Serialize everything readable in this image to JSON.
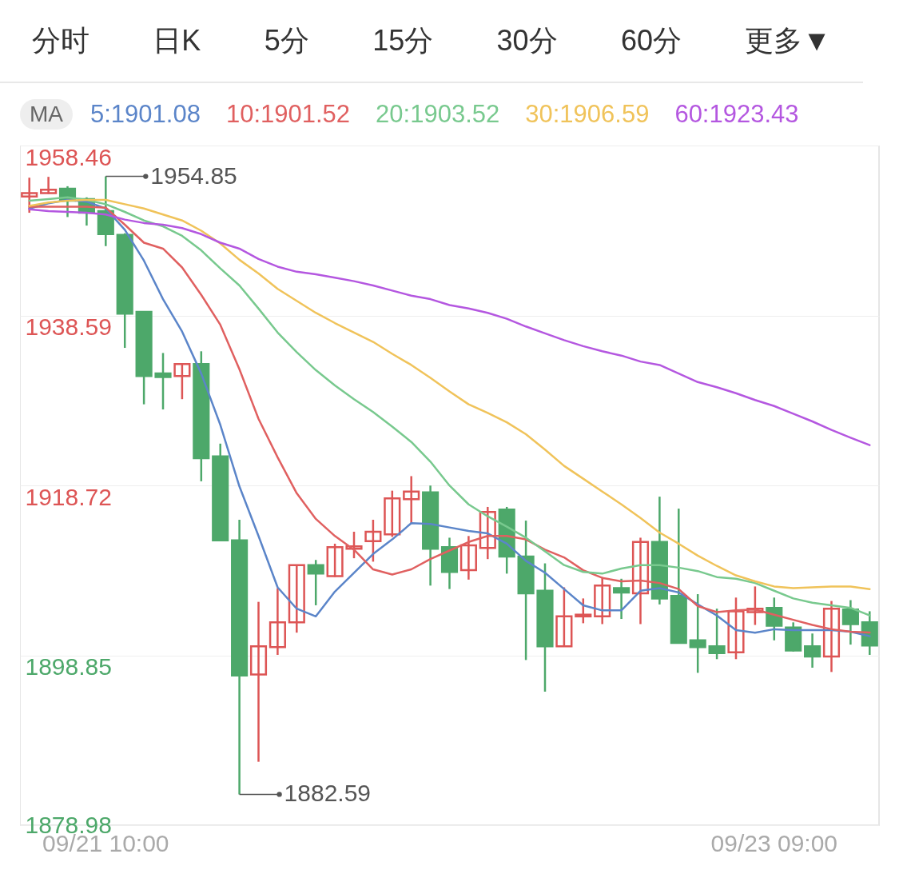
{
  "chart_data": {
    "type": "candlestick",
    "categories": [
      null,
      null,
      null,
      null,
      "09/21 10:00",
      null,
      null,
      null,
      null,
      null,
      null,
      null,
      null,
      null,
      null,
      null,
      null,
      null,
      null,
      null,
      null,
      null,
      null,
      null,
      null,
      null,
      null,
      null,
      null,
      null,
      null,
      null,
      null,
      null,
      null,
      null,
      null,
      null,
      null,
      "09/23 09:00",
      null,
      null,
      null,
      null,
      null
    ],
    "ohlc": [
      [
        1952.5,
        1954.7,
        1950.6,
        1952.9
      ],
      [
        1952.9,
        1954.8,
        1952.8,
        1953.3
      ],
      [
        1953.4,
        1953.7,
        1950.1,
        1952.0
      ],
      [
        1952.2,
        1952.4,
        1949.1,
        1950.6
      ],
      [
        1950.8,
        1954.85,
        1946.7,
        1948.1
      ],
      [
        1948.0,
        1948.2,
        1934.8,
        1938.8
      ],
      [
        1939.0,
        1939.0,
        1928.2,
        1931.5
      ],
      [
        1931.8,
        1934.2,
        1927.6,
        1931.4
      ],
      [
        1931.5,
        1932.9,
        1928.8,
        1932.9
      ],
      [
        1932.9,
        1934.4,
        1919.2,
        1921.9
      ],
      [
        1922.1,
        1923.6,
        1912.2,
        1912.3
      ],
      [
        1912.3,
        1914.7,
        1882.59,
        1896.5
      ],
      [
        1896.6,
        1905.1,
        1886.4,
        1899.9
      ],
      [
        1899.8,
        1906.7,
        1898.9,
        1902.7
      ],
      [
        1902.7,
        1909.4,
        1901.5,
        1909.4
      ],
      [
        1909.4,
        1910.0,
        1904.7,
        1908.4
      ],
      [
        1908.1,
        1911.9,
        1908.0,
        1911.5
      ],
      [
        1911.3,
        1913.3,
        1910.2,
        1911.6
      ],
      [
        1912.2,
        1914.7,
        1909.8,
        1913.3
      ],
      [
        1913.0,
        1918.1,
        1912.7,
        1917.2
      ],
      [
        1917.1,
        1919.8,
        1914.2,
        1918.0
      ],
      [
        1917.9,
        1918.7,
        1907.0,
        1911.3
      ],
      [
        1911.5,
        1912.6,
        1906.6,
        1908.6
      ],
      [
        1908.8,
        1912.8,
        1907.7,
        1911.7
      ],
      [
        1911.4,
        1916.2,
        1910.1,
        1915.6
      ],
      [
        1915.9,
        1916.2,
        1908.4,
        1910.4
      ],
      [
        1910.4,
        1914.6,
        1898.3,
        1906.1
      ],
      [
        1906.4,
        1909.6,
        1894.6,
        1899.9
      ],
      [
        1899.9,
        1906.8,
        1899.9,
        1903.4
      ],
      [
        1903.4,
        1905.5,
        1902.6,
        1903.6
      ],
      [
        1903.4,
        1908.0,
        1902.5,
        1907.0
      ],
      [
        1906.7,
        1907.8,
        1903.1,
        1906.2
      ],
      [
        1906.1,
        1912.6,
        1902.5,
        1912.1
      ],
      [
        1912.1,
        1917.4,
        1904.8,
        1905.5
      ],
      [
        1905.8,
        1916.0,
        1900.3,
        1900.3
      ],
      [
        1900.6,
        1906.0,
        1896.8,
        1899.8
      ],
      [
        1899.9,
        1904.3,
        1898.4,
        1899.1
      ],
      [
        1899.2,
        1905.6,
        1898.4,
        1904.0
      ],
      [
        1903.9,
        1906.9,
        1902.4,
        1904.3
      ],
      [
        1904.4,
        1905.6,
        1900.6,
        1902.3
      ],
      [
        1902.1,
        1902.7,
        1899.3,
        1899.4
      ],
      [
        1899.9,
        1901.4,
        1897.4,
        1898.7
      ],
      [
        1898.7,
        1905.2,
        1896.9,
        1904.3
      ],
      [
        1904.2,
        1905.3,
        1900.1,
        1902.5
      ],
      [
        1902.7,
        1904.0,
        1898.9,
        1900.0
      ]
    ],
    "colors": [
      "#dd5555",
      "#dd5555",
      "#4da86a",
      "#4da86a",
      "#4da86a",
      "#4da86a",
      "#4da86a",
      "#4da86a",
      "#dd5555",
      "#4da86a",
      "#4da86a",
      "#4da86a",
      "#dd5555",
      "#dd5555",
      "#dd5555",
      "#4da86a",
      "#dd5555",
      "#dd5555",
      "#dd5555",
      "#dd5555",
      "#dd5555",
      "#4da86a",
      "#4da86a",
      "#dd5555",
      "#dd5555",
      "#4da86a",
      "#4da86a",
      "#4da86a",
      "#dd5555",
      "#dd5555",
      "#dd5555",
      "#4da86a",
      "#dd5555",
      "#4da86a",
      "#4da86a",
      "#4da86a",
      "#4da86a",
      "#dd5555",
      "#dd5555",
      "#4da86a",
      "#4da86a",
      "#4da86a",
      "#dd5555",
      "#4da86a",
      "#4da86a"
    ],
    "series": [
      {
        "name": "5:1901.08",
        "type": "line",
        "color": "#5b85c9",
        "values": [
          1951.1,
          1951.7,
          1952.1,
          1951.9,
          1951.1,
          1948.6,
          1945.0,
          1940.5,
          1936.7,
          1931.8,
          1925.8,
          1918.6,
          1912.8,
          1906.8,
          1904.3,
          1903.4,
          1906.3,
          1908.5,
          1910.7,
          1912.4,
          1914.3,
          1914.2,
          1913.8,
          1913.4,
          1913.1,
          1911.9,
          1909.9,
          1908.5,
          1906.6,
          1904.7,
          1904.1,
          1904.1,
          1906.4,
          1906.7,
          1906.2,
          1904.8,
          1903.5,
          1901.8,
          1901.5,
          1901.9,
          1901.8,
          1901.8,
          1901.8,
          1901.6,
          1901.08
        ]
      },
      {
        "name": "10:1901.52",
        "type": "line",
        "color": "#e06060",
        "values": [
          1951.3,
          1951.3,
          1951.3,
          1951.3,
          1951.2,
          1949.2,
          1947.1,
          1946.4,
          1944.2,
          1941.0,
          1937.5,
          1932.3,
          1926.5,
          1922.0,
          1917.8,
          1914.8,
          1912.8,
          1911.2,
          1908.9,
          1908.3,
          1908.9,
          1910.1,
          1911.1,
          1912.1,
          1912.8,
          1912.8,
          1912.4,
          1911.2,
          1910.3,
          1908.8,
          1907.9,
          1907.5,
          1907.6,
          1907.3,
          1906.6,
          1904.6,
          1903.9,
          1904.1,
          1904.2,
          1903.6,
          1903.0,
          1902.4,
          1901.9,
          1901.6,
          1901.52
        ]
      },
      {
        "name": "20:1903.52",
        "type": "line",
        "color": "#78c98e",
        "values": [
          1952.0,
          1952.2,
          1952.4,
          1952.1,
          1951.6,
          1950.7,
          1949.7,
          1949.0,
          1947.9,
          1946.2,
          1944.1,
          1942.1,
          1939.4,
          1936.6,
          1934.3,
          1932.2,
          1930.4,
          1928.8,
          1927.3,
          1925.6,
          1923.8,
          1921.5,
          1918.7,
          1916.5,
          1915.1,
          1913.9,
          1912.6,
          1911.0,
          1909.4,
          1908.6,
          1908.4,
          1909.0,
          1909.4,
          1909.4,
          1909.1,
          1908.7,
          1908.0,
          1907.8,
          1907.3,
          1906.4,
          1905.5,
          1905.0,
          1904.7,
          1904.4,
          1903.52
        ]
      },
      {
        "name": "30:1906.59",
        "type": "line",
        "color": "#f0c35a",
        "values": [
          1951.4,
          1951.8,
          1952.0,
          1952.1,
          1952.1,
          1951.6,
          1951.1,
          1950.4,
          1949.7,
          1948.5,
          1947.0,
          1945.1,
          1943.5,
          1941.7,
          1940.3,
          1938.9,
          1937.7,
          1936.6,
          1935.5,
          1934.1,
          1932.8,
          1931.3,
          1929.7,
          1928.2,
          1927.2,
          1926.1,
          1924.7,
          1922.9,
          1921.0,
          1919.5,
          1918.0,
          1916.5,
          1914.9,
          1913.2,
          1911.9,
          1910.5,
          1909.3,
          1908.2,
          1907.5,
          1906.9,
          1906.7,
          1906.8,
          1906.9,
          1906.9,
          1906.59
        ]
      },
      {
        "name": "60:1923.43",
        "type": "line",
        "color": "#b457e0",
        "values": [
          1951.0,
          1950.8,
          1950.7,
          1950.6,
          1950.4,
          1949.8,
          1949.4,
          1949.2,
          1948.8,
          1948.1,
          1947.1,
          1946.4,
          1945.2,
          1944.3,
          1943.7,
          1943.4,
          1943.0,
          1942.6,
          1942.1,
          1941.5,
          1940.9,
          1940.5,
          1939.8,
          1939.4,
          1938.9,
          1938.2,
          1937.3,
          1936.5,
          1935.7,
          1935.0,
          1934.4,
          1933.9,
          1933.2,
          1932.8,
          1931.8,
          1930.8,
          1930.2,
          1929.5,
          1928.7,
          1928.0,
          1927.1,
          1926.2,
          1925.2,
          1924.3,
          1923.43
        ]
      }
    ],
    "legend_title": "MA",
    "legend": "top",
    "annotations": [
      "1954.85",
      "1882.59",
      "分时",
      "日K",
      "5分",
      "15分",
      "30分",
      "60分",
      "更多▼"
    ],
    "ylim": [
      1878.98,
      1958.46
    ],
    "yticks": [
      1878.98,
      1898.85,
      1918.72,
      1938.59,
      1958.46
    ],
    "grid": "y"
  }
}
